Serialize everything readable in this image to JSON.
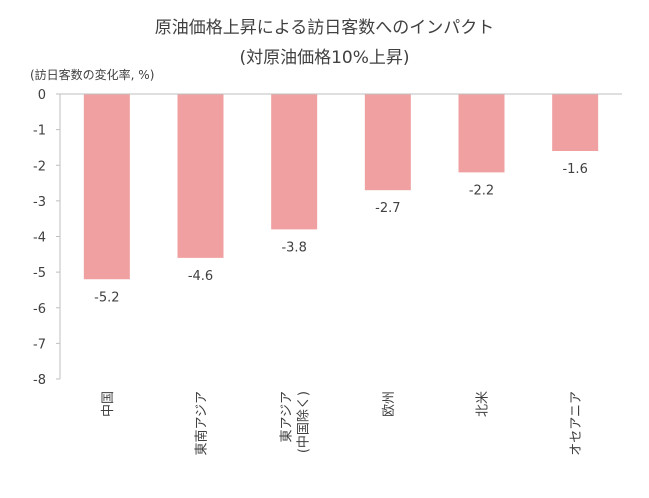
{
  "chart_data": {
    "type": "bar",
    "title_lines": [
      "原油価格上昇による訪日客数へのインパクト",
      "(対原油価格10%上昇)"
    ],
    "unit_label": "(訪日客数の変化率, %)",
    "categories": [
      [
        "中国"
      ],
      [
        "東南アジア"
      ],
      [
        "東アジア",
        "(中国除く)"
      ],
      [
        "欧州"
      ],
      [
        "北米"
      ],
      [
        "オセアニア"
      ]
    ],
    "values": [
      -5.2,
      -4.6,
      -3.8,
      -2.7,
      -2.2,
      -1.6
    ],
    "data_labels": [
      "-5.2",
      "-4.6",
      "-3.8",
      "-2.7",
      "-2.2",
      "-1.6"
    ],
    "ylim": [
      -8,
      0
    ],
    "yticks": [
      0,
      -1,
      -2,
      -3,
      -4,
      -5,
      -6,
      -7,
      -8
    ],
    "bar_color": "#F0A0A0",
    "grid": false
  }
}
